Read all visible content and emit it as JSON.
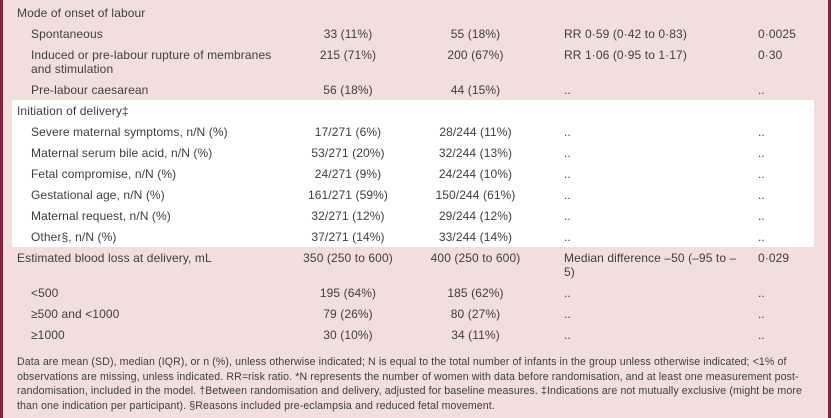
{
  "colors": {
    "background_pink": "#f2dfdc",
    "band_white": "#ffffff",
    "side_rule_maroon": "#87223f",
    "bottom_rule_black": "#1c1c1c",
    "text": "#3f3e3e"
  },
  "rows": [
    {
      "label": "Mode of onset of labour",
      "c2": "",
      "c3": "",
      "c4": "",
      "c5": ""
    },
    {
      "label": "Spontaneous",
      "c2": "33 (11%)",
      "c3": "55 (18%)",
      "c4": "RR 0·59 (0·42 to 0·83)",
      "c5": "0·0025"
    },
    {
      "label": "Induced or pre-labour rupture of membranes and stimulation",
      "c2": "215 (71%)",
      "c3": "200 (67%)",
      "c4": "RR 1·06 (0·95 to 1·17)",
      "c5": "0·30"
    },
    {
      "label": "Pre-labour caesarean",
      "c2": "56 (18%)",
      "c3": "44 (15%)",
      "c4": "..",
      "c5": ".."
    },
    {
      "label": "Initiation of delivery‡",
      "c2": "",
      "c3": "",
      "c4": "",
      "c5": ""
    },
    {
      "label": "Severe maternal symptoms, n/N (%)",
      "c2": "17/271 (6%)",
      "c3": "28/244 (11%)",
      "c4": "..",
      "c5": ".."
    },
    {
      "label": "Maternal serum bile acid, n/N (%)",
      "c2": "53/271 (20%)",
      "c3": "32/244 (13%)",
      "c4": "..",
      "c5": ".."
    },
    {
      "label": "Fetal compromise, n/N (%)",
      "c2": "24/271 (9%)",
      "c3": "24/244 (10%)",
      "c4": "..",
      "c5": ".."
    },
    {
      "label": "Gestational age, n/N (%)",
      "c2": "161/271 (59%)",
      "c3": "150/244 (61%)",
      "c4": "..",
      "c5": ".."
    },
    {
      "label": "Maternal request, n/N (%)",
      "c2": "32/271 (12%)",
      "c3": "29/244 (12%)",
      "c4": "..",
      "c5": ".."
    },
    {
      "label": "Other§, n/N (%)",
      "c2": "37/271 (14%)",
      "c3": "33/244 (14%)",
      "c4": "..",
      "c5": ".."
    },
    {
      "label": "Estimated blood loss at delivery, mL",
      "c2": "350 (250 to 600)",
      "c3": "400 (250 to 600)",
      "c4": "Median difference –50 (–95 to –5)",
      "c5": "0·029"
    },
    {
      "label": "<500",
      "c2": "195 (64%)",
      "c3": "185 (62%)",
      "c4": "..",
      "c5": ".."
    },
    {
      "label": "≥500 and <1000",
      "c2": "79 (26%)",
      "c3": "80 (27%)",
      "c4": "..",
      "c5": ".."
    },
    {
      "label": "≥1000",
      "c2": "30 (10%)",
      "c3": "34 (11%)",
      "c4": "..",
      "c5": ".."
    }
  ],
  "footnote": "Data are mean (SD), median (IQR), or n (%), unless otherwise indicated; N is equal to the total number of infants in the group unless otherwise indicated; <1% of observations are missing, unless indicated. RR=risk ratio. *N represents the number of women with data before randomisation, and at least one measurement post-randomisation, included in the model. †Between randomisation and delivery, adjusted for baseline measures. ‡Indications are not mutually exclusive (might be more than one indication per participant). §Reasons included pre-eclampsia and reduced fetal movement."
}
